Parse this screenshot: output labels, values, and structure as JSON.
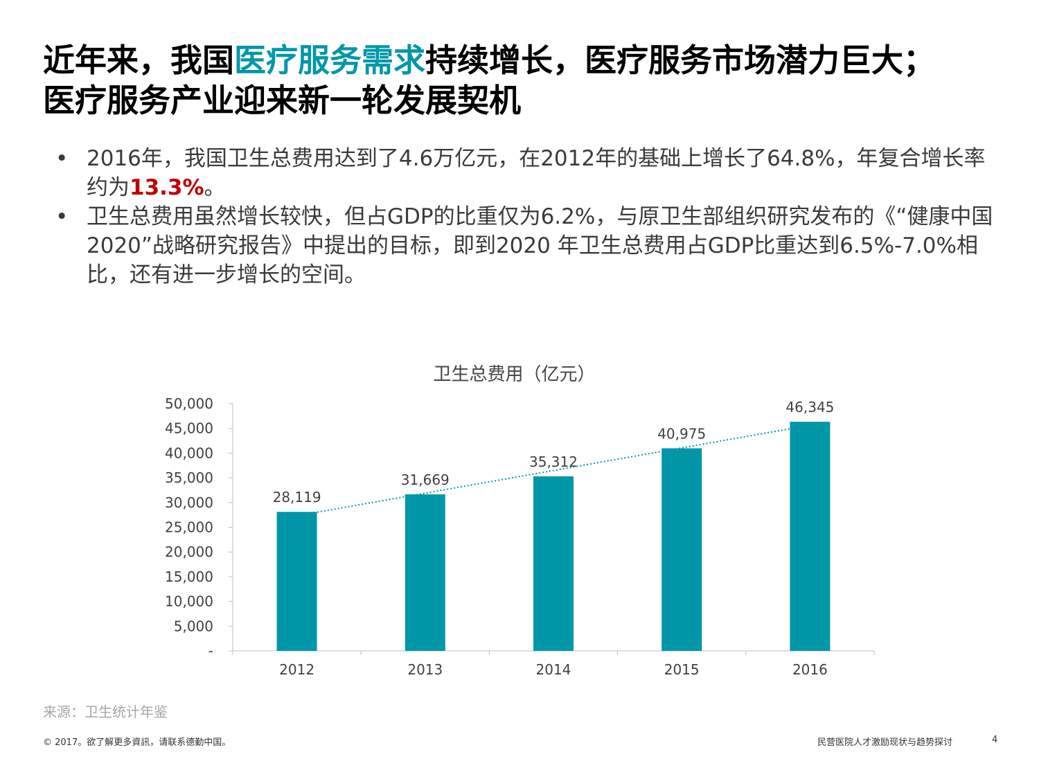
{
  "title": {
    "part1": "近年来，我国",
    "highlight": "医疗服务需求",
    "part2": "持续增长，医疗服务市场潜力巨大；",
    "line2": "医疗服务产业迎来新一轮发展契机"
  },
  "bullets": [
    {
      "marker": "•",
      "text_before": "2016年，我国卫生总费用达到了4.6万亿元，在2012年的基础上增长了64.8%，年复合增长率约为",
      "highlight": "13.3%",
      "text_after": "。"
    },
    {
      "marker": "•",
      "text": "卫生总费用虽然增长较快，但占GDP的比重仅为6.2%，与原卫生部组织研究发布的《“健康中国2020”战略研究报告》中提出的目标，即到2020 年卫生总费用占GDP比重达到6.5%-7.0%相比，还有进一步增长的空间。"
    }
  ],
  "chart_data": {
    "type": "bar",
    "title": "卫生总费用（亿元）",
    "categories": [
      "2012",
      "2013",
      "2014",
      "2015",
      "2016"
    ],
    "values": [
      28119,
      31669,
      35312,
      40975,
      46345
    ],
    "data_labels": [
      "28,119",
      "31,669",
      "35,312",
      "40,975",
      "46,345"
    ],
    "ylim": [
      0,
      50000
    ],
    "yticks": [
      "-",
      "5,000",
      "10,000",
      "15,000",
      "20,000",
      "25,000",
      "30,000",
      "35,000",
      "40,000",
      "45,000",
      "50,000"
    ],
    "ytick_values": [
      0,
      5000,
      10000,
      15000,
      20000,
      25000,
      30000,
      35000,
      40000,
      45000,
      50000
    ],
    "trendline": "linear dotted",
    "grid": false,
    "bar_color": "#0097a9",
    "trend_color": "#0097a9"
  },
  "source": "来源：卫生统计年鉴",
  "footer": {
    "left": "© 2017。欲了解更多資訊，请联系德勤中国。",
    "right": "民营医院人才激励现状与趋势探讨",
    "page": "4"
  },
  "colors": {
    "accent": "#0097a9",
    "highlight_red": "#c00000",
    "body_text": "#3a3a3a"
  }
}
